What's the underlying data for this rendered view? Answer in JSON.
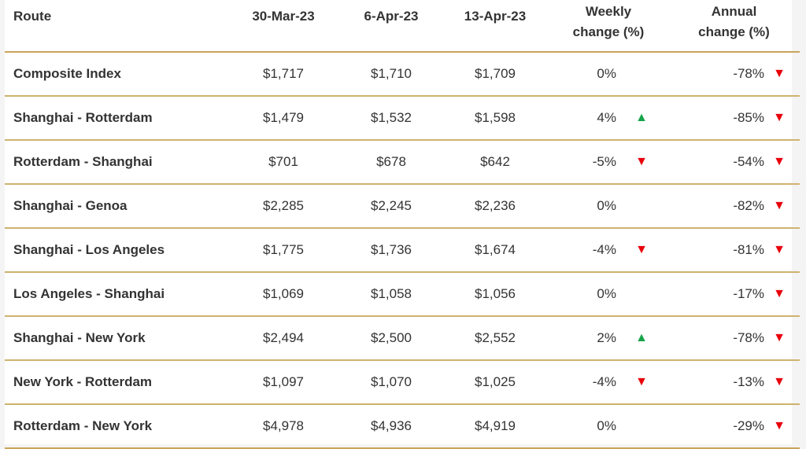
{
  "chart_data": {
    "type": "table",
    "columns": [
      "Route",
      "30-Mar-23",
      "6-Apr-23",
      "13-Apr-23",
      "Weekly change (%)",
      "Annual change (%)"
    ],
    "header": {
      "route": "Route",
      "d1": "30-Mar-23",
      "d2": "6-Apr-23",
      "d3": "13-Apr-23",
      "weekly_line1": "Weekly",
      "weekly_line2": "change (%)",
      "annual_line1": "Annual",
      "annual_line2": "change (%)"
    },
    "rows": [
      {
        "route": "Composite Index",
        "d1": "$1,717",
        "d2": "$1,710",
        "d3": "$1,709",
        "weekly": "0%",
        "weekly_dir": "none",
        "annual": "-78%",
        "annual_dir": "down"
      },
      {
        "route": "Shanghai - Rotterdam",
        "d1": "$1,479",
        "d2": "$1,532",
        "d3": "$1,598",
        "weekly": "4%",
        "weekly_dir": "up",
        "annual": "-85%",
        "annual_dir": "down"
      },
      {
        "route": "Rotterdam - Shanghai",
        "d1": "$701",
        "d2": "$678",
        "d3": "$642",
        "weekly": "-5%",
        "weekly_dir": "down",
        "annual": "-54%",
        "annual_dir": "down"
      },
      {
        "route": "Shanghai - Genoa",
        "d1": "$2,285",
        "d2": "$2,245",
        "d3": "$2,236",
        "weekly": "0%",
        "weekly_dir": "none",
        "annual": "-82%",
        "annual_dir": "down"
      },
      {
        "route": "Shanghai - Los Angeles",
        "d1": "$1,775",
        "d2": "$1,736",
        "d3": "$1,674",
        "weekly": "-4%",
        "weekly_dir": "down",
        "annual": "-81%",
        "annual_dir": "down"
      },
      {
        "route": "Los Angeles - Shanghai",
        "d1": "$1,069",
        "d2": "$1,058",
        "d3": "$1,056",
        "weekly": "0%",
        "weekly_dir": "none",
        "annual": "-17%",
        "annual_dir": "down"
      },
      {
        "route": "Shanghai - New York",
        "d1": "$2,494",
        "d2": "$2,500",
        "d3": "$2,552",
        "weekly": "2%",
        "weekly_dir": "up",
        "annual": "-78%",
        "annual_dir": "down"
      },
      {
        "route": "New York - Rotterdam",
        "d1": "$1,097",
        "d2": "$1,070",
        "d3": "$1,025",
        "weekly": "-4%",
        "weekly_dir": "down",
        "annual": "-13%",
        "annual_dir": "down"
      },
      {
        "route": "Rotterdam - New York",
        "d1": "$4,978",
        "d2": "$4,936",
        "d3": "$4,919",
        "weekly": "0%",
        "weekly_dir": "none",
        "annual": "-29%",
        "annual_dir": "down"
      }
    ],
    "colors": {
      "up": "#16a34a",
      "down": "#e8000b",
      "rule": "#c9a55a"
    },
    "icons": {
      "up": "triangle-up-icon",
      "down": "triangle-down-icon"
    }
  }
}
